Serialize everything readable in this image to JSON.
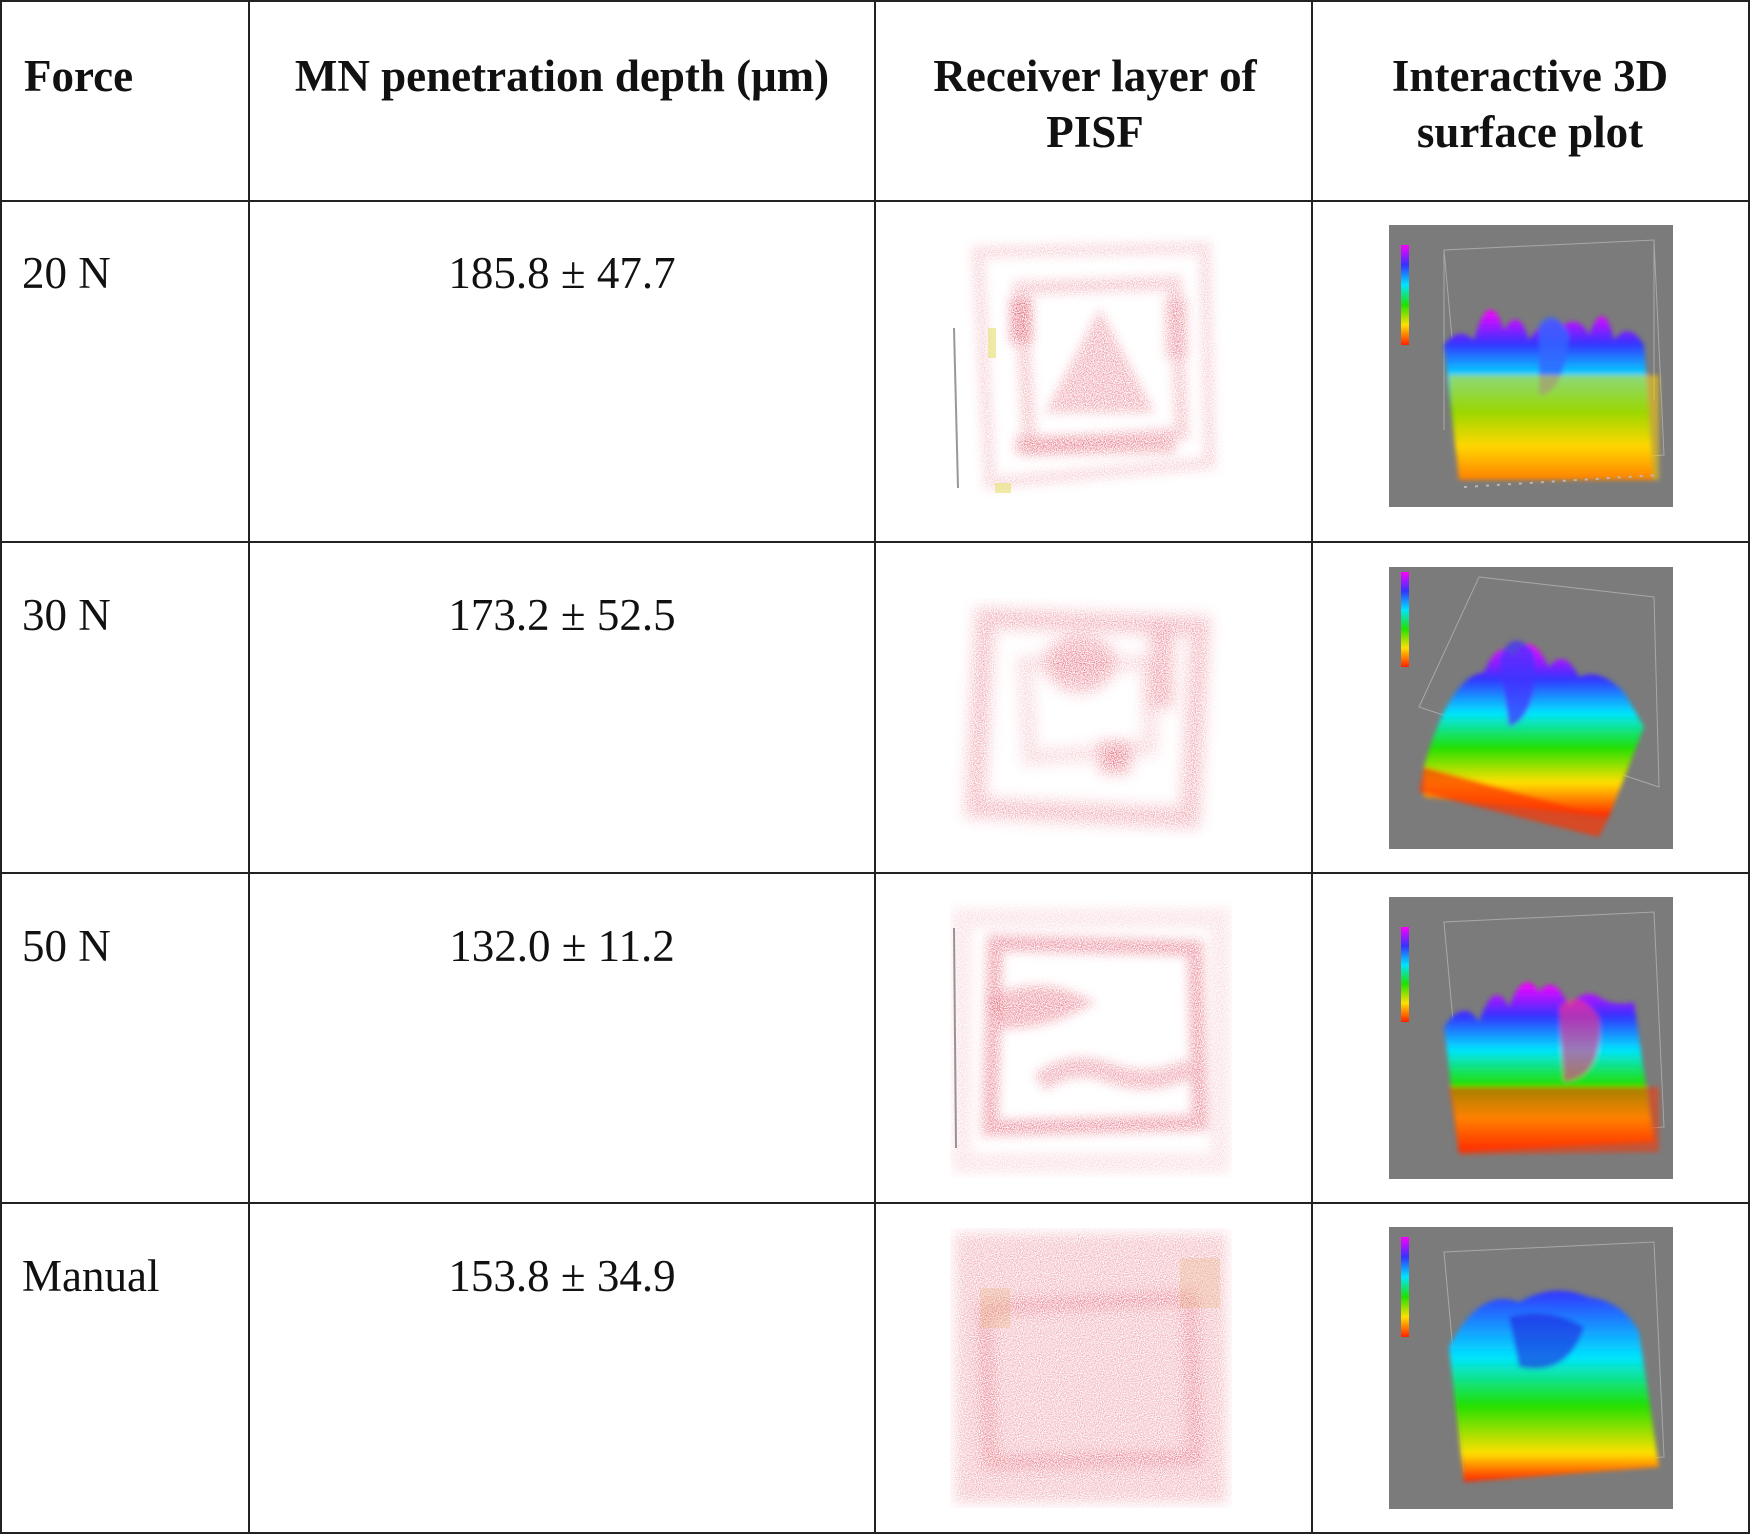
{
  "table": {
    "headers": [
      "Force",
      "MN penetration depth (μm)",
      "Receiver layer of PISF",
      "Interactive 3D surface plot"
    ],
    "rows": [
      {
        "force": "20 N",
        "depth": "185.8 ± 47.7"
      },
      {
        "force": "30 N",
        "depth": "173.2 ± 52.5"
      },
      {
        "force": "50 N",
        "depth": "132.0 ± 11.2"
      },
      {
        "force": "Manual",
        "depth": "153.8 ± 34.9"
      }
    ]
  },
  "colors": {
    "stain": "#d8334a",
    "plot_background": "#7b7b7b"
  }
}
